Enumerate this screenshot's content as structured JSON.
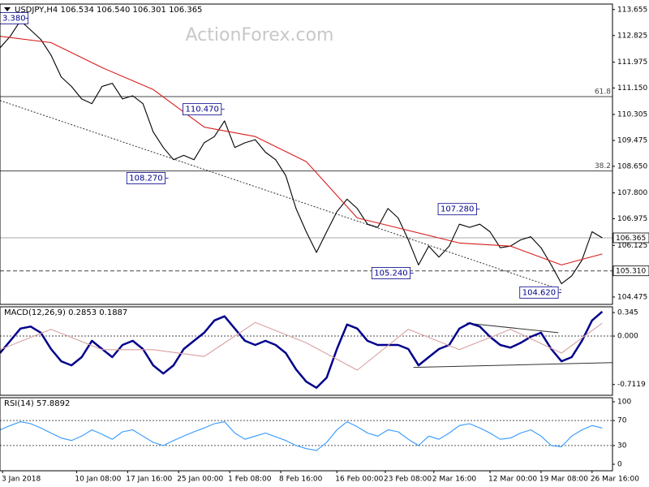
{
  "chart_data": [
    {
      "type": "line",
      "title": "USDJPY,H4  106.534 106.540 106.301 106.365",
      "watermark": "ActionForex.com",
      "xlim": [
        0,
        120
      ],
      "ylim": [
        104.24,
        113.83
      ],
      "yticks": [
        113.655,
        112.825,
        111.975,
        {
          "value": 111.15,
          "label": "111.150"
        },
        110.305,
        109.475,
        {
          "value": 108.65,
          "label": "108.650"
        },
        {
          "value": 107.8,
          "label": "107.800"
        },
        106.975,
        106.125,
        104.475
      ],
      "x": [
        0,
        2,
        4,
        6,
        8,
        10,
        12,
        14,
        16,
        18,
        20,
        22,
        24,
        26,
        28,
        30,
        32,
        34,
        36,
        38,
        40,
        42,
        44,
        46,
        48,
        50,
        52,
        54,
        56,
        58,
        60,
        62,
        64,
        66,
        68,
        70,
        72,
        74,
        76,
        78,
        80,
        82,
        84,
        86,
        88,
        90,
        92,
        94,
        96,
        98,
        100,
        102,
        104,
        106,
        108,
        110,
        112,
        114,
        116,
        118
      ],
      "series": [
        {
          "color": "#000000",
          "values": [
            112.43,
            112.8,
            113.3,
            113.0,
            112.7,
            112.2,
            111.5,
            111.2,
            110.8,
            110.65,
            111.2,
            111.3,
            110.8,
            110.9,
            110.65,
            109.75,
            109.25,
            108.86,
            109.0,
            108.86,
            109.4,
            109.6,
            110.1,
            109.25,
            109.4,
            109.5,
            109.1,
            108.86,
            108.35,
            107.3,
            106.56,
            105.9,
            106.56,
            107.2,
            107.6,
            107.3,
            106.8,
            106.7,
            107.3,
            107.0,
            106.3,
            105.5,
            106.1,
            105.75,
            106.1,
            106.8,
            106.7,
            106.8,
            106.56,
            106.05,
            106.1,
            106.3,
            106.4,
            106.05,
            105.5,
            104.9,
            105.15,
            105.65,
            106.56,
            106.365
          ]
        },
        {
          "color": "#d91c1c",
          "x": [
            0,
            10,
            20,
            30,
            40,
            50,
            60,
            70,
            80,
            90,
            100,
            110,
            118
          ],
          "values": [
            112.8,
            112.6,
            111.8,
            111.1,
            109.9,
            109.6,
            108.8,
            107.0,
            106.6,
            106.2,
            106.1,
            105.5,
            105.85
          ]
        }
      ],
      "hlines": [
        {
          "value": 110.875,
          "label": "61.8",
          "style": "solid",
          "color": "#444444"
        },
        {
          "value": 108.5,
          "label": "38.2",
          "style": "solid",
          "color": "#444444"
        },
        {
          "value": 106.365,
          "style": "solid",
          "color": "#aaaaaa",
          "boxed": true
        },
        {
          "value": 105.31,
          "label": "105.310",
          "style": "dashed",
          "color": "#444444",
          "boxed": true
        }
      ],
      "trendlines": [
        {
          "x": [
            0,
            110
          ],
          "y": [
            110.75,
            104.7
          ],
          "style": "dotted",
          "color": "#333333"
        }
      ],
      "annotations": [
        {
          "text": "3.380",
          "x": 5,
          "y": 113.38
        },
        {
          "text": "110.470",
          "x": 44,
          "y": 110.47
        },
        {
          "text": "108.270",
          "x": 33,
          "y": 108.27
        },
        {
          "text": "107.280",
          "x": 94,
          "y": 107.28
        },
        {
          "text": "105.240",
          "x": 81,
          "y": 105.24
        },
        {
          "text": "104.620",
          "x": 110,
          "y": 104.62
        }
      ]
    },
    {
      "type": "line",
      "title": "MACD(12,26,9) 0.2853 0.1887",
      "xlim": [
        0,
        120
      ],
      "ylim": [
        -0.87,
        0.43
      ],
      "yticks": [
        0.345,
        {
          "value": 0,
          "label": "0.000"
        },
        -0.7119
      ],
      "x": [
        0,
        2,
        4,
        6,
        8,
        10,
        12,
        14,
        16,
        18,
        20,
        22,
        24,
        26,
        28,
        30,
        32,
        34,
        36,
        38,
        40,
        42,
        44,
        46,
        48,
        50,
        52,
        54,
        56,
        58,
        60,
        62,
        64,
        66,
        68,
        70,
        72,
        74,
        76,
        78,
        80,
        82,
        84,
        86,
        88,
        90,
        92,
        94,
        96,
        98,
        100,
        102,
        104,
        106,
        108,
        110,
        112,
        114,
        116,
        118
      ],
      "series": [
        {
          "color": "#00008b",
          "values": [
            -0.25,
            -0.07,
            0.11,
            0.14,
            0.05,
            -0.19,
            -0.37,
            -0.43,
            -0.31,
            -0.07,
            -0.19,
            -0.31,
            -0.13,
            -0.07,
            -0.19,
            -0.43,
            -0.55,
            -0.43,
            -0.19,
            -0.07,
            0.05,
            0.23,
            0.29,
            0.11,
            -0.07,
            -0.13,
            -0.07,
            -0.13,
            -0.25,
            -0.49,
            -0.67,
            -0.76,
            -0.61,
            -0.19,
            0.17,
            0.11,
            -0.07,
            -0.13,
            -0.13,
            -0.13,
            -0.19,
            -0.43,
            -0.31,
            -0.19,
            -0.13,
            0.11,
            0.19,
            0.14,
            -0.01,
            -0.13,
            -0.17,
            -0.1,
            -0.01,
            0.05,
            -0.19,
            -0.37,
            -0.31,
            -0.07,
            0.23,
            0.36
          ]
        },
        {
          "color": "#d9a0a0",
          "x": [
            0,
            10,
            20,
            30,
            40,
            50,
            60,
            70,
            80,
            90,
            100,
            110,
            118
          ],
          "values": [
            -0.2,
            0.1,
            -0.2,
            -0.2,
            -0.3,
            0.2,
            -0.1,
            -0.5,
            0.1,
            -0.2,
            0.1,
            -0.25,
            0.19
          ]
        }
      ],
      "hlines": [
        {
          "value": 0,
          "style": "dotted",
          "color": "#444444"
        }
      ],
      "trendlines": [
        {
          "x": [
            91.4,
            109.4
          ],
          "y": [
            0.19,
            0.05
          ],
          "style": "solid",
          "color": "#333333"
        },
        {
          "x": [
            81,
            120
          ],
          "y": [
            -0.46,
            -0.39
          ],
          "style": "solid",
          "color": "#333333"
        }
      ]
    },
    {
      "type": "line",
      "title": "RSI(14) 57.8892",
      "xlim": [
        0,
        120
      ],
      "ylim": [
        -10.4,
        106.5
      ],
      "yticks": [
        100,
        70,
        30,
        0
      ],
      "x": [
        0,
        2,
        4,
        6,
        8,
        10,
        12,
        14,
        16,
        18,
        20,
        22,
        24,
        26,
        28,
        30,
        32,
        34,
        36,
        38,
        40,
        42,
        44,
        46,
        48,
        50,
        52,
        54,
        56,
        58,
        60,
        62,
        64,
        66,
        68,
        70,
        72,
        74,
        76,
        78,
        80,
        82,
        84,
        86,
        88,
        90,
        92,
        94,
        96,
        98,
        100,
        102,
        104,
        106,
        108,
        110,
        112,
        114,
        116,
        118
      ],
      "series": [
        {
          "color": "#3399ff",
          "values": [
            55,
            62,
            68,
            65,
            58,
            50,
            42,
            38,
            45,
            55,
            48,
            40,
            52,
            55,
            45,
            35,
            30,
            38,
            45,
            52,
            58,
            65,
            68,
            50,
            40,
            45,
            50,
            44,
            38,
            30,
            25,
            22,
            35,
            55,
            68,
            60,
            50,
            45,
            55,
            52,
            40,
            30,
            45,
            40,
            50,
            62,
            65,
            58,
            50,
            40,
            42,
            50,
            55,
            45,
            30,
            28,
            45,
            55,
            62,
            58
          ]
        }
      ],
      "hlines": [
        {
          "value": 70,
          "style": "dotted",
          "color": "#555555"
        },
        {
          "value": 30,
          "style": "dotted",
          "color": "#555555"
        }
      ],
      "xticks": [
        {
          "value": 0.5,
          "label": "3 Jan 2018"
        },
        {
          "value": 15,
          "label": "10 Jan 08:00"
        },
        {
          "value": 25,
          "label": "17 Jan 16:00"
        },
        {
          "value": 35,
          "label": "25 Jan 00:00"
        },
        {
          "value": 45,
          "label": "1 Feb 08:00"
        },
        {
          "value": 55,
          "label": "8 Feb 16:00"
        },
        {
          "value": 66,
          "label": "16 Feb 00:00"
        },
        {
          "value": 75.5,
          "label": "23 Feb 08:00"
        },
        {
          "value": 85,
          "label": "2 Mar 16:00"
        },
        {
          "value": 96,
          "label": "12 Mar 00:00"
        },
        {
          "value": 106,
          "label": "19 Mar 08:00"
        },
        {
          "value": 116,
          "label": "26 Mar 16:00"
        }
      ]
    }
  ]
}
